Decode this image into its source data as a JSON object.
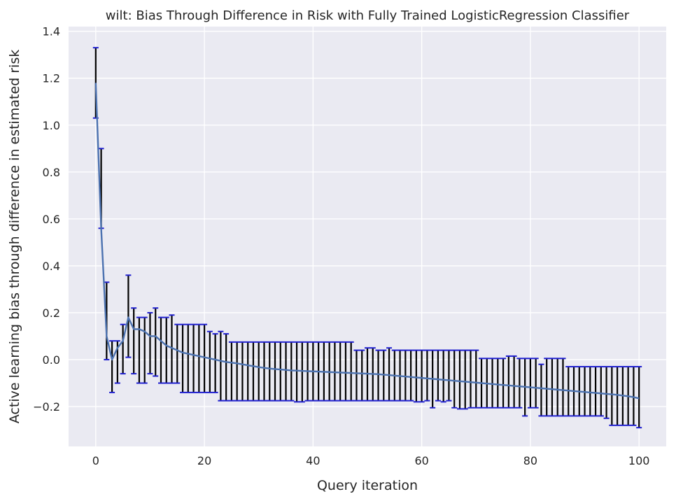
{
  "chart_data": {
    "type": "line",
    "title": "wilt: Bias Through Difference in Risk with Fully Trained LogisticRegression Classifier",
    "xlabel": "Query iteration",
    "ylabel": "Active learning bias through difference in estimated risk",
    "xlim": [
      -5,
      105
    ],
    "ylim": [
      -0.37,
      1.42
    ],
    "x_ticks": [
      0,
      20,
      40,
      60,
      80,
      100
    ],
    "x_tick_labels": [
      "0",
      "20",
      "40",
      "60",
      "80",
      "100"
    ],
    "y_ticks": [
      -0.2,
      0.0,
      0.2,
      0.4,
      0.6,
      0.8,
      1.0,
      1.2,
      1.4
    ],
    "y_tick_labels": [
      "−0.2",
      "0.0",
      "0.2",
      "0.4",
      "0.6",
      "0.8",
      "1.0",
      "1.2",
      "1.4"
    ],
    "grid": true,
    "colors": {
      "background": "#eaeaf2",
      "grid": "#ffffff",
      "line": "#4c72b0",
      "errorbar": "#000000",
      "caps": "#1f1fd0"
    },
    "series": [
      {
        "x": [
          0,
          1,
          2,
          3,
          4,
          5,
          6,
          7,
          8,
          9,
          10,
          11,
          12,
          13,
          14,
          15,
          16,
          17,
          18,
          19,
          20,
          21,
          22,
          23,
          24,
          25,
          26,
          27,
          28,
          29,
          30,
          31,
          32,
          33,
          34,
          35,
          36,
          37,
          38,
          39,
          40,
          41,
          42,
          43,
          44,
          45,
          46,
          47,
          48,
          49,
          50,
          51,
          52,
          53,
          54,
          55,
          56,
          57,
          58,
          59,
          60,
          61,
          62,
          63,
          64,
          65,
          66,
          67,
          68,
          69,
          70,
          71,
          72,
          73,
          74,
          75,
          76,
          77,
          78,
          79,
          80,
          81,
          82,
          83,
          84,
          85,
          86,
          87,
          88,
          89,
          90,
          91,
          92,
          93,
          94,
          95,
          96,
          97,
          98,
          99,
          100
        ],
        "y": [
          1.18,
          0.56,
          0.1,
          0.0,
          0.05,
          0.08,
          0.18,
          0.13,
          0.13,
          0.12,
          0.1,
          0.1,
          0.08,
          0.06,
          0.05,
          0.04,
          0.03,
          0.025,
          0.02,
          0.015,
          0.01,
          0.005,
          0.0,
          -0.005,
          -0.01,
          -0.013,
          -0.016,
          -0.02,
          -0.024,
          -0.028,
          -0.032,
          -0.035,
          -0.038,
          -0.04,
          -0.042,
          -0.044,
          -0.046,
          -0.047,
          -0.048,
          -0.049,
          -0.05,
          -0.051,
          -0.052,
          -0.053,
          -0.054,
          -0.055,
          -0.056,
          -0.057,
          -0.058,
          -0.059,
          -0.06,
          -0.061,
          -0.062,
          -0.064,
          -0.066,
          -0.068,
          -0.07,
          -0.072,
          -0.074,
          -0.076,
          -0.078,
          -0.08,
          -0.082,
          -0.084,
          -0.086,
          -0.088,
          -0.09,
          -0.092,
          -0.094,
          -0.096,
          -0.098,
          -0.1,
          -0.102,
          -0.104,
          -0.106,
          -0.108,
          -0.11,
          -0.112,
          -0.114,
          -0.116,
          -0.118,
          -0.12,
          -0.122,
          -0.124,
          -0.126,
          -0.128,
          -0.13,
          -0.132,
          -0.134,
          -0.136,
          -0.138,
          -0.14,
          -0.142,
          -0.144,
          -0.146,
          -0.148,
          -0.15,
          -0.153,
          -0.156,
          -0.16,
          -0.165
        ],
        "lower": [
          1.03,
          0.56,
          0.0,
          -0.14,
          -0.1,
          -0.06,
          0.01,
          -0.06,
          -0.1,
          -0.1,
          -0.06,
          -0.07,
          -0.1,
          -0.1,
          -0.1,
          -0.1,
          -0.14,
          -0.14,
          -0.14,
          -0.14,
          -0.14,
          -0.14,
          -0.14,
          -0.175,
          -0.175,
          -0.175,
          -0.175,
          -0.175,
          -0.175,
          -0.175,
          -0.175,
          -0.175,
          -0.175,
          -0.175,
          -0.175,
          -0.175,
          -0.175,
          -0.18,
          -0.18,
          -0.175,
          -0.175,
          -0.175,
          -0.175,
          -0.175,
          -0.175,
          -0.175,
          -0.175,
          -0.175,
          -0.175,
          -0.175,
          -0.175,
          -0.175,
          -0.175,
          -0.175,
          -0.175,
          -0.175,
          -0.175,
          -0.175,
          -0.175,
          -0.18,
          -0.18,
          -0.175,
          -0.205,
          -0.175,
          -0.18,
          -0.175,
          -0.205,
          -0.21,
          -0.21,
          -0.205,
          -0.205,
          -0.205,
          -0.205,
          -0.205,
          -0.205,
          -0.205,
          -0.205,
          -0.205,
          -0.205,
          -0.24,
          -0.205,
          -0.205,
          -0.24,
          -0.24,
          -0.24,
          -0.24,
          -0.24,
          -0.24,
          -0.24,
          -0.24,
          -0.24,
          -0.24,
          -0.24,
          -0.24,
          -0.25,
          -0.28,
          -0.28,
          -0.28,
          -0.28,
          -0.28,
          -0.29
        ],
        "upper": [
          1.33,
          0.9,
          0.33,
          0.08,
          0.08,
          0.15,
          0.36,
          0.22,
          0.18,
          0.18,
          0.2,
          0.22,
          0.18,
          0.18,
          0.19,
          0.15,
          0.15,
          0.15,
          0.15,
          0.15,
          0.15,
          0.12,
          0.11,
          0.12,
          0.11,
          0.075,
          0.075,
          0.075,
          0.075,
          0.075,
          0.075,
          0.075,
          0.075,
          0.075,
          0.075,
          0.075,
          0.075,
          0.075,
          0.075,
          0.075,
          0.075,
          0.075,
          0.075,
          0.075,
          0.075,
          0.075,
          0.075,
          0.075,
          0.04,
          0.04,
          0.05,
          0.05,
          0.04,
          0.04,
          0.05,
          0.04,
          0.04,
          0.04,
          0.04,
          0.04,
          0.04,
          0.04,
          0.04,
          0.04,
          0.04,
          0.04,
          0.04,
          0.04,
          0.04,
          0.04,
          0.04,
          0.005,
          0.005,
          0.005,
          0.005,
          0.005,
          0.015,
          0.015,
          0.005,
          0.005,
          0.005,
          0.005,
          -0.02,
          0.005,
          0.005,
          0.005,
          0.005,
          -0.03,
          -0.03,
          -0.03,
          -0.03,
          -0.03,
          -0.03,
          -0.03,
          -0.03,
          -0.03,
          -0.03,
          -0.03,
          -0.03,
          -0.03,
          -0.03
        ]
      }
    ]
  }
}
